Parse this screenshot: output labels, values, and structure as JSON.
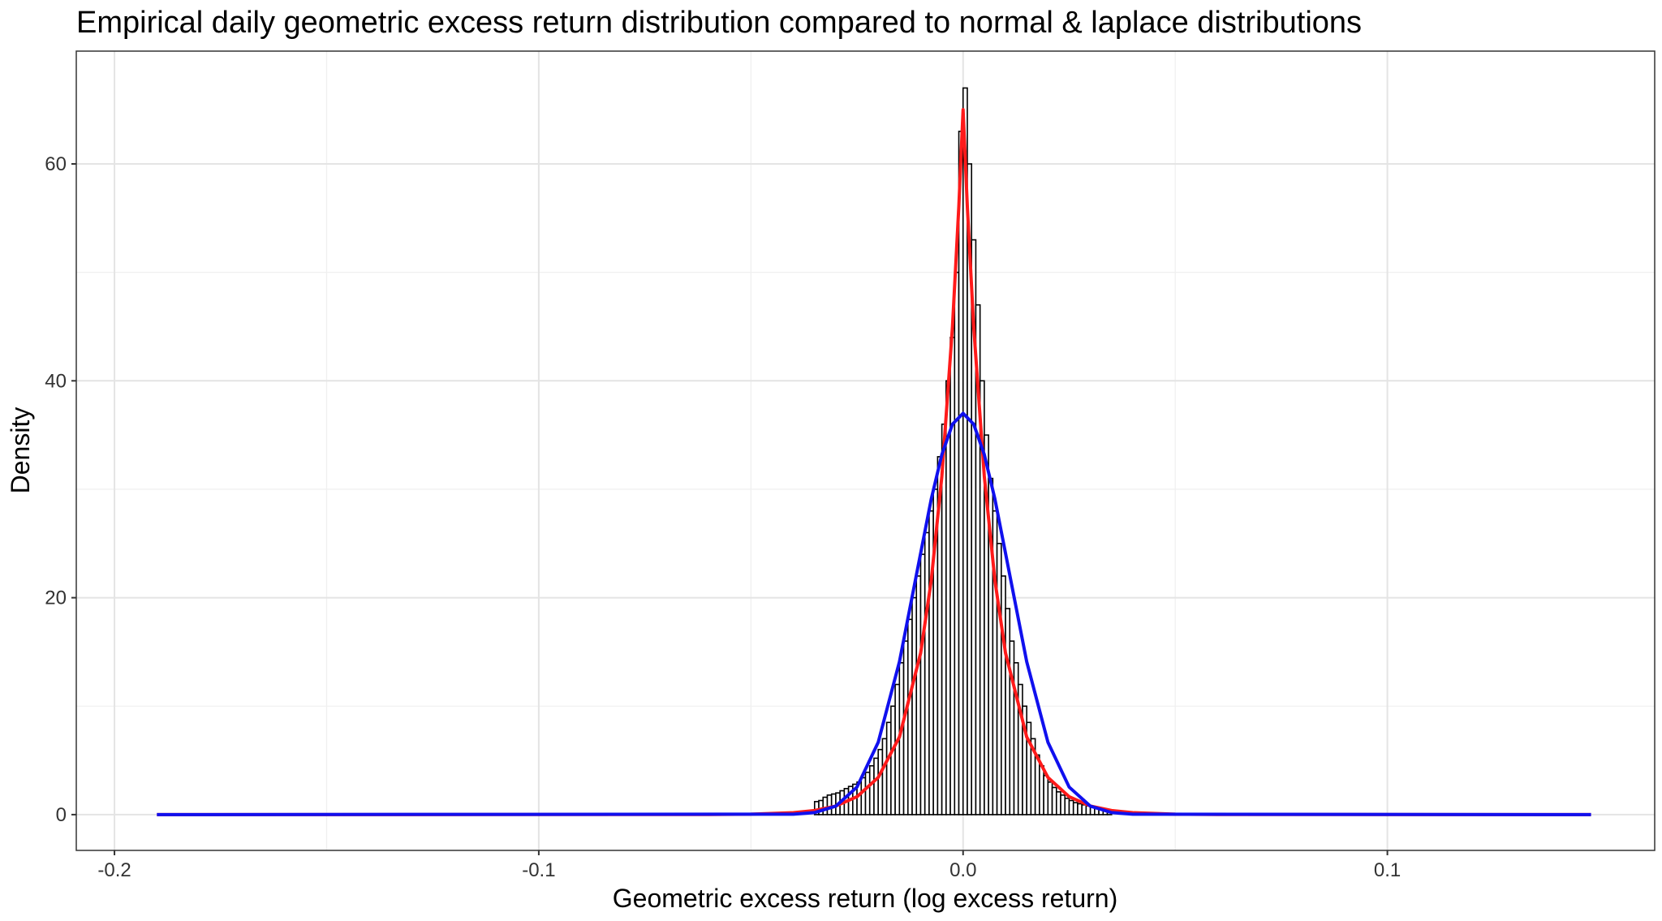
{
  "chart_data": {
    "type": "histogram",
    "title": "Empirical daily geometric excess return distribution compared to normal & laplace distributions",
    "x_label": "Geometric excess return (log excess return)",
    "y_label": "Density",
    "bins": [
      -0.035,
      -0.034,
      -0.033,
      -0.032,
      -0.031,
      -0.03,
      -0.029,
      -0.028,
      -0.027,
      -0.026,
      -0.025,
      -0.024,
      -0.023,
      -0.022,
      -0.021,
      -0.02,
      -0.019,
      -0.018,
      -0.017,
      -0.016,
      -0.015,
      -0.014,
      -0.013,
      -0.012,
      -0.011,
      -0.01,
      -0.009,
      -0.008,
      -0.007,
      -0.006,
      -0.005,
      -0.004,
      -0.003,
      -0.002,
      -0.001,
      0,
      0.001,
      0.002,
      0.003,
      0.004,
      0.005,
      0.006,
      0.007,
      0.008,
      0.009,
      0.01,
      0.011,
      0.012,
      0.013,
      0.014,
      0.015,
      0.016,
      0.017,
      0.018,
      0.019,
      0.02,
      0.021,
      0.022,
      0.023,
      0.024,
      0.025,
      0.026,
      0.027,
      0.028,
      0.029,
      0.03,
      0.031,
      0.032,
      0.033,
      0.034,
      0.035
    ],
    "values": [
      1.2,
      1.3,
      1.6,
      1.8,
      1.9,
      2.0,
      2.2,
      2.4,
      2.6,
      2.8,
      3.0,
      3.4,
      3.9,
      4.5,
      5.2,
      6.0,
      7.0,
      8.5,
      10,
      12,
      14,
      16,
      18,
      20,
      22,
      24,
      26,
      28,
      30,
      33,
      36,
      40,
      44,
      50,
      63,
      67,
      60,
      53,
      47,
      40,
      35,
      31,
      28,
      25,
      22,
      19,
      16,
      14,
      12,
      10,
      8.5,
      7,
      5.5,
      4.5,
      3.6,
      3.0,
      2.5,
      2.1,
      1.8,
      1.5,
      1.3,
      1.1,
      1.0,
      0.9,
      0.8,
      0.7,
      0.6,
      0.5,
      0.4,
      0.3
    ],
    "bar_fill": "#ffffff",
    "bar_stroke": "#000000",
    "series": [
      {
        "color": "#ff1a1a",
        "x": [
          -0.19,
          -0.06,
          -0.05,
          -0.04,
          -0.035,
          -0.03,
          -0.025,
          -0.02,
          -0.015,
          -0.01,
          -0.0075,
          -0.005,
          -0.0025,
          -0.001,
          0,
          0.001,
          0.0025,
          0.005,
          0.0075,
          0.01,
          0.015,
          0.02,
          0.025,
          0.03,
          0.035,
          0.04,
          0.05,
          0.06,
          0.148
        ],
        "values": [
          0,
          0.01,
          0.04,
          0.18,
          0.38,
          0.79,
          1.65,
          3.43,
          7.16,
          14.9,
          21.6,
          31.2,
          45.0,
          56.1,
          65,
          56.1,
          45.0,
          31.2,
          21.6,
          14.9,
          7.16,
          3.43,
          1.65,
          0.79,
          0.38,
          0.18,
          0.04,
          0.01,
          0
        ]
      },
      {
        "color": "#1010ee",
        "x": [
          -0.19,
          -0.04,
          -0.035,
          -0.03,
          -0.025,
          -0.02,
          -0.015,
          -0.01,
          -0.0075,
          -0.005,
          -0.0025,
          0,
          0.0025,
          0.005,
          0.0075,
          0.01,
          0.015,
          0.02,
          0.025,
          0.03,
          0.035,
          0.04,
          0.148
        ],
        "values": [
          0,
          0.04,
          0.19,
          0.78,
          2.54,
          6.67,
          14.1,
          24.1,
          29.1,
          33.2,
          36.0,
          37,
          36.0,
          33.2,
          29.1,
          24.1,
          14.1,
          6.67,
          2.54,
          0.78,
          0.19,
          0.04,
          0
        ]
      }
    ],
    "xlim": [
      -0.209,
      0.163
    ],
    "ylim": [
      -3.3,
      70.4
    ],
    "xticks": [
      -0.2,
      -0.1,
      {
        "value": 0,
        "label": "0.0"
      },
      0.1
    ],
    "yticks": [
      0,
      20,
      40,
      60
    ],
    "grid": true
  }
}
